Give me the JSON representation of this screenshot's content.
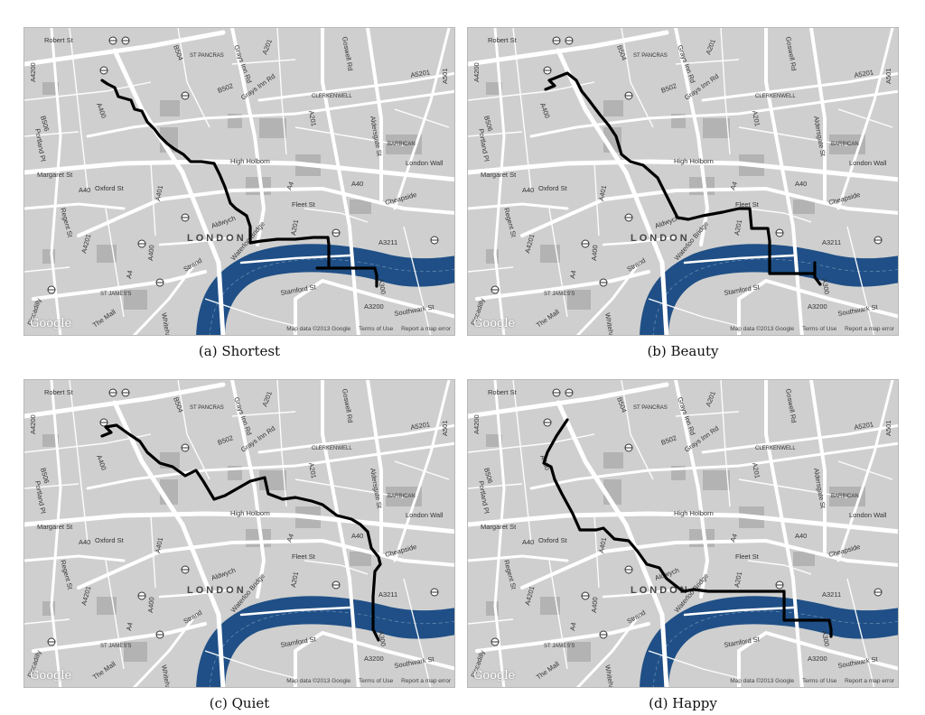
{
  "panels": [
    {
      "id": "a",
      "caption": "(a) Shortest",
      "route": "shortest"
    },
    {
      "id": "b",
      "caption": "(b) Beauty",
      "route": "beauty"
    },
    {
      "id": "c",
      "caption": "(c) Quiet",
      "route": "quiet"
    },
    {
      "id": "d",
      "caption": "(d) Happy",
      "route": "happy"
    }
  ],
  "map_labels": {
    "city": "LONDON",
    "roads": [
      "Robert St",
      "A4200",
      "B504",
      "Grays Inn Rd",
      "Goswell Rd",
      "A201",
      "A5201",
      "A501",
      "B502",
      "Grays Inn Rd",
      "B506",
      "A400",
      "A201",
      "Portland Pl",
      "Aldersgate St",
      "London Wall",
      "High Holborn",
      "A40",
      "Cheapside",
      "Margaret St",
      "A40",
      "Oxford St",
      "A401",
      "Fleet St",
      "A4",
      "Regent St",
      "A3211",
      "A4201",
      "A400",
      "Strand",
      "Waterloo Bridge",
      "Stamford St",
      "A300",
      "A3200",
      "Southwark St",
      "Piccadilly",
      "A4",
      "The Mall",
      "Whitehall",
      "Aldwych",
      "A201"
    ],
    "areas": [
      "ST PANCRAS",
      "CLERKENWELL",
      "BARBICAN",
      "ST JAMES'S"
    ],
    "attribution": [
      "Map data ©2013 Google",
      "Terms of Use",
      "Report a map error"
    ],
    "logo": "Google"
  },
  "colors": {
    "land": "#cfcfcf",
    "road": "#ffffff",
    "river": "#1f4f86",
    "block": "#b5b5b5",
    "route": "#000000"
  }
}
